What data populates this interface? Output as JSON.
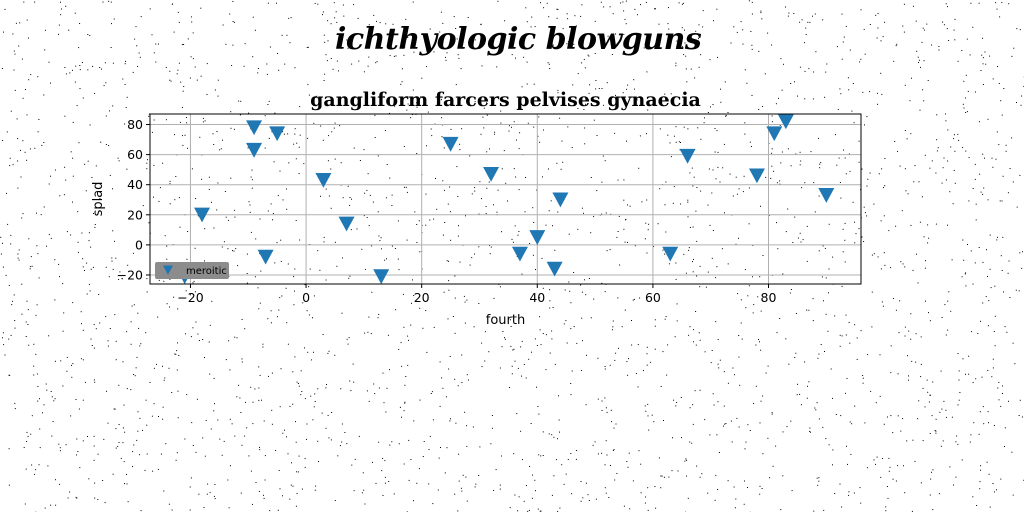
{
  "figure": {
    "suptitle": "ichthyologic blowguns"
  },
  "chart_data": {
    "type": "scatter",
    "title": "gangliform farcers pelvises gynaecia",
    "xlabel": "fourth",
    "ylabel": "splad",
    "xlim": [
      -27,
      96
    ],
    "ylim": [
      -26,
      87
    ],
    "xticks": [
      -20,
      0,
      20,
      40,
      60,
      80
    ],
    "yticks": [
      -20,
      0,
      20,
      40,
      60,
      80
    ],
    "grid": true,
    "legend_position": "lower-left",
    "marker": "triangle-down",
    "color": "#1f77b4",
    "series": [
      {
        "name": "meroitic",
        "x": [
          -21,
          -18,
          -9,
          -9,
          -7,
          -5,
          3,
          7,
          13,
          25,
          32,
          37,
          40,
          43,
          44,
          63,
          66,
          78,
          81,
          83,
          90
        ],
        "y": [
          -21,
          20,
          78,
          63,
          -8,
          74,
          43,
          14,
          -21,
          67,
          47,
          -6,
          5,
          -16,
          30,
          -6,
          59,
          46,
          74,
          82,
          33
        ]
      }
    ]
  }
}
